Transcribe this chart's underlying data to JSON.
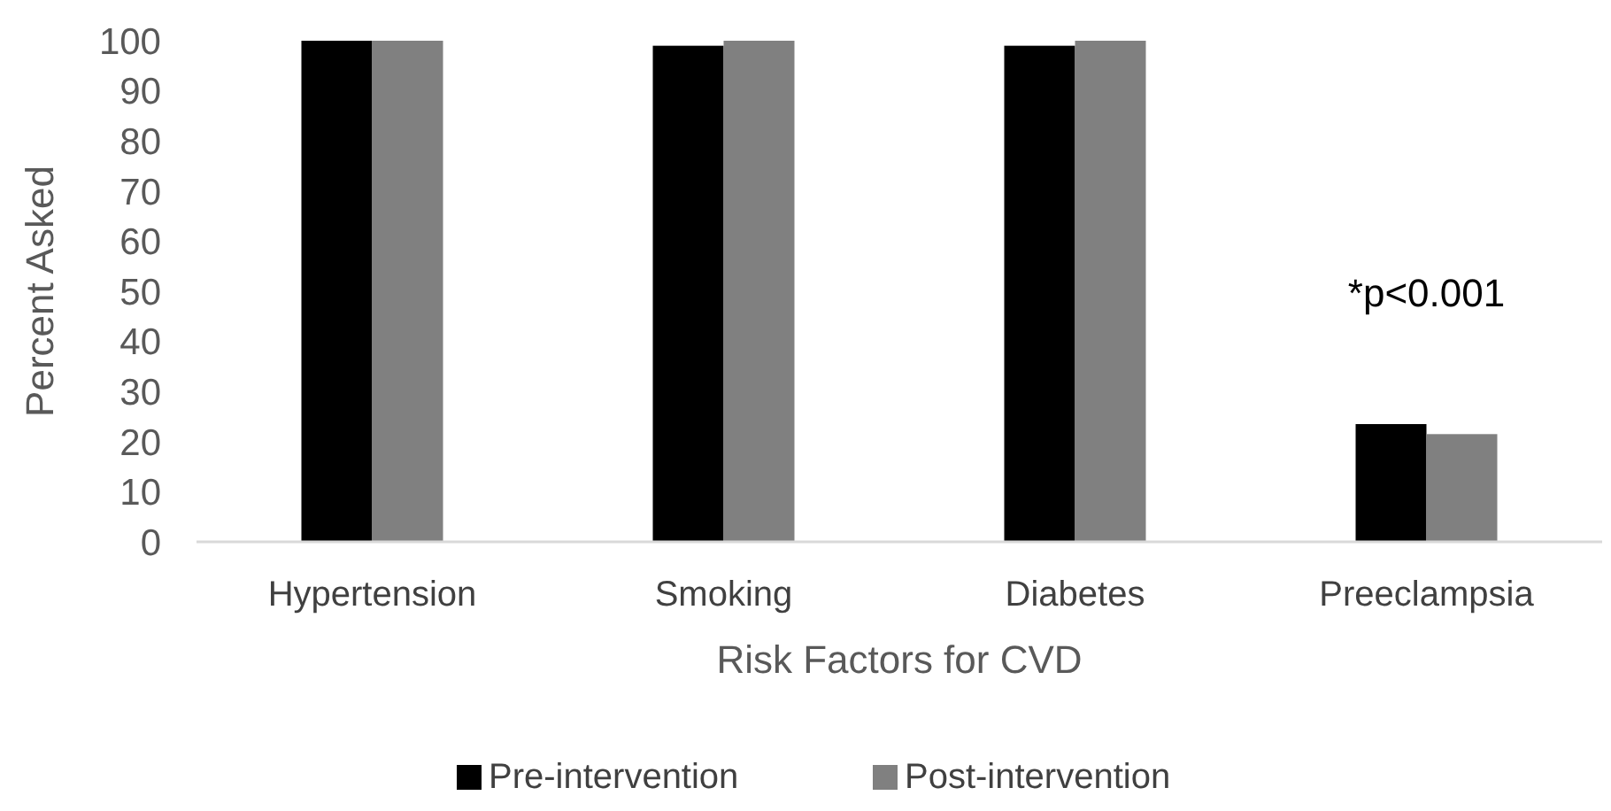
{
  "chart_data": {
    "type": "bar",
    "xlabel": "Risk Factors for CVD",
    "ylabel": "Percent Asked",
    "categories": [
      "Hypertension",
      "Smoking",
      "Diabetes",
      "Preeclampsia"
    ],
    "series": [
      {
        "name": "Pre-intervention",
        "color": "#000000",
        "values": [
          100,
          99,
          99,
          23.5
        ]
      },
      {
        "name": "Post-intervention",
        "color": "#808080",
        "values": [
          100,
          100,
          100,
          21.5
        ]
      }
    ],
    "ylim": [
      0,
      100
    ],
    "yticks": [
      0,
      10,
      20,
      30,
      40,
      50,
      60,
      70,
      80,
      90,
      100
    ],
    "grid": false,
    "legend": "bottom",
    "annotations": [
      "*p<0.001"
    ]
  }
}
